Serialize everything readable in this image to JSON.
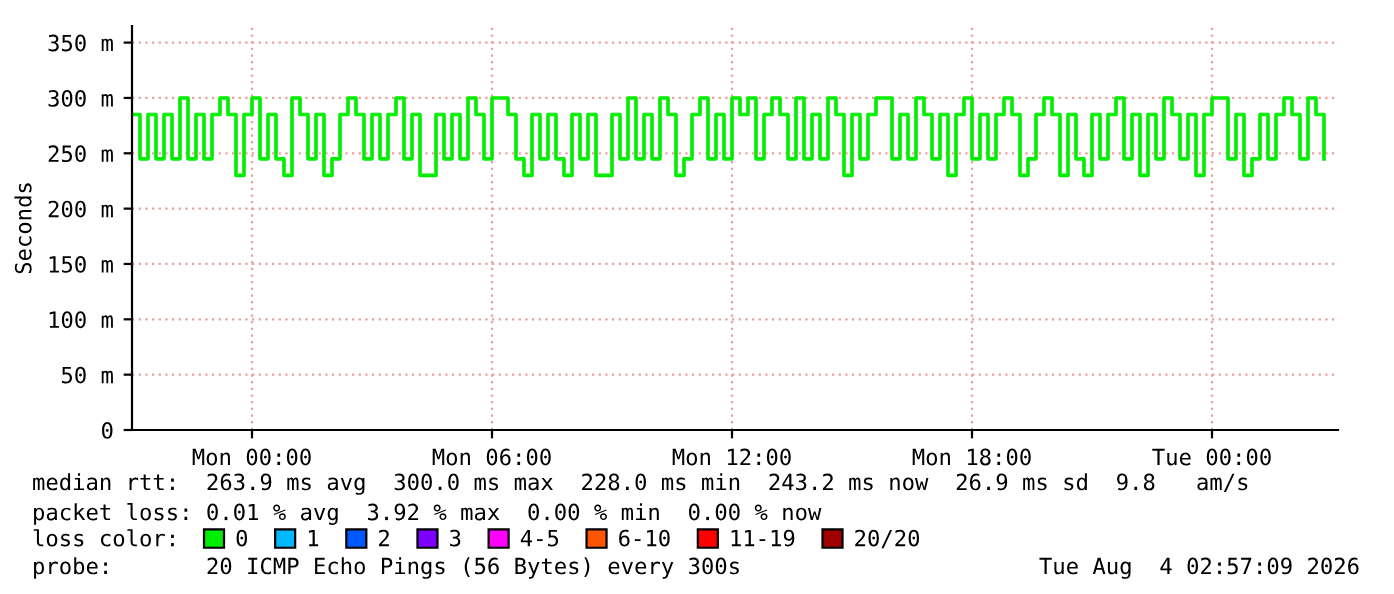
{
  "chart_data": {
    "type": "step",
    "ylabel": "Seconds",
    "ylim": [
      0,
      365
    ],
    "yticks": [
      0,
      {
        "value": 50,
        "label": "50 m"
      },
      {
        "value": 100,
        "label": "100 m"
      },
      {
        "value": 150,
        "label": "150 m"
      },
      {
        "value": 200,
        "label": "200 m"
      },
      {
        "value": 250,
        "label": "250 m"
      },
      {
        "value": 300,
        "label": "300 m"
      },
      {
        "value": 350,
        "label": "350 m"
      }
    ],
    "xlim": [
      "2026-08-02T21:00",
      "2026-08-04T03:09"
    ],
    "xticks": [
      {
        "value": "2026-08-03T00:00",
        "label": "Mon 00:00"
      },
      {
        "value": "2026-08-03T06:00",
        "label": "Mon 06:00"
      },
      {
        "value": "2026-08-03T12:00",
        "label": "Mon 12:00"
      },
      {
        "value": "2026-08-03T18:00",
        "label": "Mon 18:00"
      },
      {
        "value": "2026-08-04T00:00",
        "label": "Tue 00:00"
      }
    ],
    "grid": true,
    "legend": "bottom",
    "legend_title": "loss color:",
    "x": [
      "2026-08-02T21:00",
      "2026-08-02T21:12",
      "2026-08-02T21:24",
      "2026-08-02T21:36",
      "2026-08-02T21:48",
      "2026-08-02T22:00",
      "2026-08-02T22:12",
      "2026-08-02T22:24",
      "2026-08-02T22:36",
      "2026-08-02T22:48",
      "2026-08-02T23:00",
      "2026-08-02T23:12",
      "2026-08-02T23:24",
      "2026-08-02T23:36",
      "2026-08-02T23:48",
      "2026-08-03T00:00",
      "2026-08-03T00:12",
      "2026-08-03T00:24",
      "2026-08-03T00:36",
      "2026-08-03T00:48",
      "2026-08-03T01:00",
      "2026-08-03T01:12",
      "2026-08-03T01:24",
      "2026-08-03T01:36",
      "2026-08-03T01:48",
      "2026-08-03T02:00",
      "2026-08-03T02:12",
      "2026-08-03T02:24",
      "2026-08-03T02:36",
      "2026-08-03T02:48",
      "2026-08-03T03:00",
      "2026-08-03T03:12",
      "2026-08-03T03:24",
      "2026-08-03T03:36",
      "2026-08-03T03:48",
      "2026-08-03T04:00",
      "2026-08-03T04:12",
      "2026-08-03T04:24",
      "2026-08-03T04:36",
      "2026-08-03T04:48",
      "2026-08-03T05:00",
      "2026-08-03T05:12",
      "2026-08-03T05:24",
      "2026-08-03T05:36",
      "2026-08-03T05:48",
      "2026-08-03T06:00",
      "2026-08-03T06:12",
      "2026-08-03T06:24",
      "2026-08-03T06:36",
      "2026-08-03T06:48",
      "2026-08-03T07:00",
      "2026-08-03T07:12",
      "2026-08-03T07:24",
      "2026-08-03T07:36",
      "2026-08-03T07:48",
      "2026-08-03T08:00",
      "2026-08-03T08:12",
      "2026-08-03T08:24",
      "2026-08-03T08:36",
      "2026-08-03T08:48",
      "2026-08-03T09:00",
      "2026-08-03T09:12",
      "2026-08-03T09:24",
      "2026-08-03T09:36",
      "2026-08-03T09:48",
      "2026-08-03T10:00",
      "2026-08-03T10:12",
      "2026-08-03T10:24",
      "2026-08-03T10:36",
      "2026-08-03T10:48",
      "2026-08-03T11:00",
      "2026-08-03T11:12",
      "2026-08-03T11:24",
      "2026-08-03T11:36",
      "2026-08-03T11:48",
      "2026-08-03T12:00",
      "2026-08-03T12:12",
      "2026-08-03T12:24",
      "2026-08-03T12:36",
      "2026-08-03T12:48",
      "2026-08-03T13:00",
      "2026-08-03T13:12",
      "2026-08-03T13:24",
      "2026-08-03T13:36",
      "2026-08-03T13:48",
      "2026-08-03T14:00",
      "2026-08-03T14:12",
      "2026-08-03T14:24",
      "2026-08-03T14:36",
      "2026-08-03T14:48",
      "2026-08-03T15:00",
      "2026-08-03T15:12",
      "2026-08-03T15:24",
      "2026-08-03T15:36",
      "2026-08-03T15:48",
      "2026-08-03T16:00",
      "2026-08-03T16:12",
      "2026-08-03T16:24",
      "2026-08-03T16:36",
      "2026-08-03T16:48",
      "2026-08-03T17:00",
      "2026-08-03T17:12",
      "2026-08-03T17:24",
      "2026-08-03T17:36",
      "2026-08-03T17:48",
      "2026-08-03T18:00",
      "2026-08-03T18:12",
      "2026-08-03T18:24",
      "2026-08-03T18:36",
      "2026-08-03T18:48",
      "2026-08-03T19:00",
      "2026-08-03T19:12",
      "2026-08-03T19:24",
      "2026-08-03T19:36",
      "2026-08-03T19:48",
      "2026-08-03T20:00",
      "2026-08-03T20:12",
      "2026-08-03T20:24",
      "2026-08-03T20:36",
      "2026-08-03T20:48",
      "2026-08-03T21:00",
      "2026-08-03T21:12",
      "2026-08-03T21:24",
      "2026-08-03T21:36",
      "2026-08-03T21:48",
      "2026-08-03T22:00",
      "2026-08-03T22:12",
      "2026-08-03T22:24",
      "2026-08-03T22:36",
      "2026-08-03T22:48",
      "2026-08-03T23:00",
      "2026-08-03T23:12",
      "2026-08-03T23:24",
      "2026-08-03T23:36",
      "2026-08-03T23:48",
      "2026-08-04T00:00",
      "2026-08-04T00:12",
      "2026-08-04T00:24",
      "2026-08-04T00:36",
      "2026-08-04T00:48",
      "2026-08-04T01:00",
      "2026-08-04T01:12",
      "2026-08-04T01:24",
      "2026-08-04T01:36",
      "2026-08-04T01:48",
      "2026-08-04T02:00",
      "2026-08-04T02:12",
      "2026-08-04T02:24",
      "2026-08-04T02:36",
      "2026-08-04T02:48"
    ],
    "series": [
      {
        "name": "0",
        "color": "#00ee00",
        "values": [
          285,
          245,
          285,
          245,
          285,
          245,
          300,
          245,
          285,
          245,
          285,
          300,
          285,
          230,
          285,
          300,
          245,
          285,
          245,
          230,
          300,
          285,
          245,
          285,
          230,
          245,
          285,
          300,
          285,
          245,
          285,
          245,
          285,
          300,
          245,
          285,
          230,
          230,
          285,
          245,
          285,
          245,
          300,
          285,
          245,
          300,
          300,
          285,
          245,
          230,
          285,
          245,
          285,
          245,
          230,
          285,
          245,
          285,
          230,
          230,
          285,
          245,
          300,
          245,
          285,
          245,
          300,
          285,
          230,
          245,
          285,
          300,
          245,
          285,
          245,
          300,
          285,
          300,
          245,
          285,
          300,
          285,
          245,
          300,
          245,
          285,
          245,
          300,
          285,
          230,
          285,
          245,
          285,
          300,
          300,
          245,
          285,
          245,
          300,
          285,
          245,
          285,
          230,
          285,
          300,
          245,
          285,
          245,
          285,
          300,
          285,
          230,
          245,
          285,
          300,
          285,
          230,
          285,
          245,
          230,
          285,
          245,
          285,
          300,
          245,
          285,
          230,
          285,
          245,
          300,
          285,
          245,
          285,
          230,
          285,
          300,
          300,
          245,
          285,
          230,
          245,
          285,
          245,
          285,
          300,
          285,
          245,
          300,
          285,
          245
        ]
      },
      {
        "name": "1",
        "color": "#00b8ff",
        "values": [
          null,
          null,
          null,
          null,
          null,
          null,
          null,
          null,
          null,
          null,
          null,
          null,
          null,
          null,
          null,
          null,
          null,
          null,
          null,
          null,
          null,
          null,
          null,
          null,
          null,
          null,
          null,
          null,
          null,
          null,
          null,
          null,
          null,
          null,
          null,
          null,
          null,
          null,
          null,
          null,
          null,
          null,
          null,
          null,
          null,
          null,
          null,
          null,
          null,
          null,
          null,
          null,
          null,
          null,
          null,
          null,
          null,
          null,
          null,
          null,
          null,
          null,
          null,
          null,
          null,
          null,
          null,
          null,
          null,
          null,
          null,
          null,
          null,
          null,
          null,
          null,
          null,
          null,
          null,
          null,
          null,
          null,
          null,
          null,
          null,
          null,
          null,
          null,
          null,
          null,
          null,
          null,
          null,
          null,
          null,
          null,
          null,
          null,
          null,
          null,
          null,
          null,
          null,
          null,
          null,
          null,
          null,
          null,
          null,
          null,
          null,
          null,
          null,
          null,
          null,
          null,
          null,
          null,
          null,
          null,
          null,
          null,
          null,
          null,
          null,
          null,
          null,
          null,
          null,
          null,
          null,
          null,
          null,
          null,
          null,
          null,
          null,
          null,
          null,
          null,
          null,
          null,
          null,
          null,
          null,
          null,
          null,
          null,
          null,
          null
        ]
      },
      {
        "name": "2",
        "color": "#0059ff",
        "values": [
          null,
          null,
          null,
          null,
          null,
          null,
          null,
          null,
          null,
          null,
          null,
          null,
          null,
          null,
          null,
          null,
          null,
          null,
          null,
          null,
          null,
          null,
          null,
          null,
          null,
          null,
          null,
          null,
          null,
          null,
          null,
          null,
          null,
          null,
          null,
          null,
          null,
          null,
          null,
          null,
          null,
          null,
          null,
          null,
          null,
          null,
          null,
          null,
          null,
          null,
          null,
          null,
          null,
          null,
          null,
          null,
          null,
          null,
          null,
          null,
          null,
          null,
          null,
          null,
          null,
          null,
          null,
          null,
          null,
          null,
          null,
          null,
          null,
          null,
          null,
          null,
          null,
          null,
          null,
          null,
          null,
          null,
          null,
          null,
          null,
          null,
          null,
          null,
          null,
          null,
          null,
          null,
          null,
          null,
          null,
          null,
          null,
          null,
          null,
          null,
          null,
          null,
          null,
          null,
          null,
          null,
          null,
          null,
          null,
          null,
          null,
          null,
          null,
          null,
          null,
          null,
          null,
          null,
          null,
          null,
          null,
          null,
          null,
          null,
          null,
          null,
          null,
          null,
          null,
          null,
          null,
          null,
          null,
          null,
          null,
          null,
          null,
          null,
          null,
          null,
          null,
          null,
          null,
          null,
          null,
          null,
          null,
          null,
          null,
          null
        ]
      },
      {
        "name": "3",
        "color": "#7e00ff",
        "values": [
          null,
          null,
          null,
          null,
          null,
          null,
          null,
          null,
          null,
          null,
          null,
          null,
          null,
          null,
          null,
          null,
          null,
          null,
          null,
          null,
          null,
          null,
          null,
          null,
          null,
          null,
          null,
          null,
          null,
          null,
          null,
          null,
          null,
          null,
          null,
          null,
          null,
          null,
          null,
          null,
          null,
          null,
          null,
          null,
          null,
          null,
          null,
          null,
          null,
          null,
          null,
          null,
          null,
          null,
          null,
          null,
          null,
          null,
          null,
          null,
          null,
          null,
          null,
          null,
          null,
          null,
          null,
          null,
          null,
          null,
          null,
          null,
          null,
          null,
          null,
          null,
          null,
          null,
          null,
          null,
          null,
          null,
          null,
          null,
          null,
          null,
          null,
          null,
          null,
          null,
          null,
          null,
          null,
          null,
          null,
          null,
          null,
          null,
          null,
          null,
          null,
          null,
          null,
          null,
          null,
          null,
          null,
          null,
          null,
          null,
          null,
          null,
          null,
          null,
          null,
          null,
          null,
          null,
          null,
          null,
          null,
          null,
          null,
          null,
          null,
          null,
          null,
          null,
          null,
          null,
          null,
          null,
          null,
          null,
          null,
          null,
          null,
          null,
          null,
          null,
          null,
          null,
          null,
          null,
          null,
          null,
          null,
          null,
          null,
          null
        ]
      },
      {
        "name": "4-5",
        "color": "#ff00ff",
        "values": [
          null,
          null,
          null,
          null,
          null,
          null,
          null,
          null,
          null,
          null,
          null,
          null,
          null,
          null,
          null,
          null,
          null,
          null,
          null,
          null,
          null,
          null,
          null,
          null,
          null,
          null,
          null,
          null,
          null,
          null,
          null,
          null,
          null,
          null,
          null,
          null,
          null,
          null,
          null,
          null,
          null,
          null,
          null,
          null,
          null,
          null,
          null,
          null,
          null,
          null,
          null,
          null,
          null,
          null,
          null,
          null,
          null,
          null,
          null,
          null,
          null,
          null,
          null,
          null,
          null,
          null,
          null,
          null,
          null,
          null,
          null,
          null,
          null,
          null,
          null,
          null,
          null,
          null,
          null,
          null,
          null,
          null,
          null,
          null,
          null,
          null,
          null,
          null,
          null,
          null,
          null,
          null,
          null,
          null,
          null,
          null,
          null,
          null,
          null,
          null,
          null,
          null,
          null,
          null,
          null,
          null,
          null,
          null,
          null,
          null,
          null,
          null,
          null,
          null,
          null,
          null,
          null,
          null,
          null,
          null,
          null,
          null,
          null,
          null,
          null,
          null,
          null,
          null,
          null,
          null,
          null,
          null,
          null,
          null,
          null,
          null,
          null,
          null,
          null,
          null,
          null,
          null,
          null,
          null,
          null,
          null,
          null,
          null,
          null,
          null
        ]
      },
      {
        "name": "6-10",
        "color": "#ff5500",
        "values": [
          null,
          null,
          null,
          null,
          null,
          null,
          null,
          null,
          null,
          null,
          null,
          null,
          null,
          null,
          null,
          null,
          null,
          null,
          null,
          null,
          null,
          null,
          null,
          null,
          null,
          null,
          null,
          null,
          null,
          null,
          null,
          null,
          null,
          null,
          null,
          null,
          null,
          null,
          null,
          null,
          null,
          null,
          null,
          null,
          null,
          null,
          null,
          null,
          null,
          null,
          null,
          null,
          null,
          null,
          null,
          null,
          null,
          null,
          null,
          null,
          null,
          null,
          null,
          null,
          null,
          null,
          null,
          null,
          null,
          null,
          null,
          null,
          null,
          null,
          null,
          null,
          null,
          null,
          null,
          null,
          null,
          null,
          null,
          null,
          null,
          null,
          null,
          null,
          null,
          null,
          null,
          null,
          null,
          null,
          null,
          null,
          null,
          null,
          null,
          null,
          null,
          null,
          null,
          null,
          null,
          null,
          null,
          null,
          null,
          null,
          null,
          null,
          null,
          null,
          null,
          null,
          null,
          null,
          null,
          null,
          null,
          null,
          null,
          null,
          null,
          null,
          null,
          null,
          null,
          null,
          null,
          null,
          null,
          null,
          null,
          null,
          null,
          null,
          null,
          null,
          null,
          null,
          null,
          null,
          null,
          null,
          null,
          null,
          null,
          null
        ]
      },
      {
        "name": "11-19",
        "color": "#ff0000",
        "values": [
          null,
          null,
          null,
          null,
          null,
          null,
          null,
          null,
          null,
          null,
          null,
          null,
          null,
          null,
          null,
          null,
          null,
          null,
          null,
          null,
          null,
          null,
          null,
          null,
          null,
          null,
          null,
          null,
          null,
          null,
          null,
          null,
          null,
          null,
          null,
          null,
          null,
          null,
          null,
          null,
          null,
          null,
          null,
          null,
          null,
          null,
          null,
          null,
          null,
          null,
          null,
          null,
          null,
          null,
          null,
          null,
          null,
          null,
          null,
          null,
          null,
          null,
          null,
          null,
          null,
          null,
          null,
          null,
          null,
          null,
          null,
          null,
          null,
          null,
          null,
          null,
          null,
          null,
          null,
          null,
          null,
          null,
          null,
          null,
          null,
          null,
          null,
          null,
          null,
          null,
          null,
          null,
          null,
          null,
          null,
          null,
          null,
          null,
          null,
          null,
          null,
          null,
          null,
          null,
          null,
          null,
          null,
          null,
          null,
          null,
          null,
          null,
          null,
          null,
          null,
          null,
          null,
          null,
          null,
          null,
          null,
          null,
          null,
          null,
          null,
          null,
          null,
          null,
          null,
          null,
          null,
          null,
          null,
          null,
          null,
          null,
          null,
          null,
          null,
          null,
          null,
          null,
          null,
          null,
          null,
          null,
          null,
          null,
          null,
          null
        ]
      },
      {
        "name": "20/20",
        "color": "#a10000",
        "values": [
          null,
          null,
          null,
          null,
          null,
          null,
          null,
          null,
          null,
          null,
          null,
          null,
          null,
          null,
          null,
          null,
          null,
          null,
          null,
          null,
          null,
          null,
          null,
          null,
          null,
          null,
          null,
          null,
          null,
          null,
          null,
          null,
          null,
          null,
          null,
          null,
          null,
          null,
          null,
          null,
          null,
          null,
          null,
          null,
          null,
          null,
          null,
          null,
          null,
          null,
          null,
          null,
          null,
          null,
          null,
          null,
          null,
          null,
          null,
          null,
          null,
          null,
          null,
          null,
          null,
          null,
          null,
          null,
          null,
          null,
          null,
          null,
          null,
          null,
          null,
          null,
          null,
          null,
          null,
          null,
          null,
          null,
          null,
          null,
          null,
          null,
          null,
          null,
          null,
          null,
          null,
          null,
          null,
          null,
          null,
          null,
          null,
          null,
          null,
          null,
          null,
          null,
          null,
          null,
          null,
          null,
          null,
          null,
          null,
          null,
          null,
          null,
          null,
          null,
          null,
          null,
          null,
          null,
          null,
          null,
          null,
          null,
          null,
          null,
          null,
          null,
          null,
          null,
          null,
          null,
          null,
          null,
          null,
          null,
          null,
          null,
          null,
          null,
          null,
          null,
          null,
          null,
          null,
          null,
          null,
          null,
          null,
          null,
          null,
          null
        ]
      }
    ],
    "annotations": [
      "median rtt:  263.9 ms avg  300.0 ms max  228.0 ms min  243.2 ms now  26.9 ms sd  9.8   am/s",
      "packet loss: 0.01 % avg  3.92 % max  0.00 % min  0.00 % now",
      "probe:       20 ICMP Echo Pings (56 Bytes) every 300s",
      "Tue Aug  4 02:57:09 2026"
    ]
  }
}
